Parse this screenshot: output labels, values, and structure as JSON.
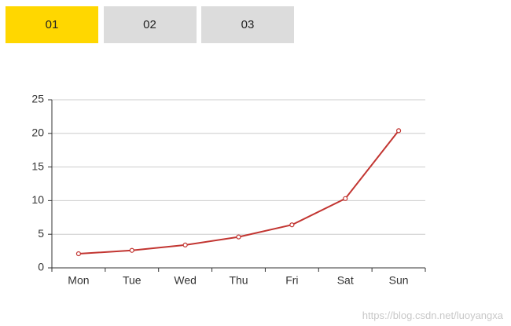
{
  "tabs": {
    "items": [
      "01",
      "02",
      "03"
    ],
    "active": 0,
    "active_color": "#ffd700",
    "color": "#dcdcdc"
  },
  "chart_data": {
    "type": "line",
    "categories": [
      "Mon",
      "Tue",
      "Wed",
      "Thu",
      "Fri",
      "Sat",
      "Sun"
    ],
    "values": [
      2.1,
      2.6,
      3.4,
      4.6,
      6.4,
      10.3,
      20.4
    ],
    "color": "#c23531",
    "ylim": [
      0,
      25
    ],
    "yticks": [
      0,
      5,
      10,
      15,
      20,
      25
    ],
    "grid": true
  },
  "watermark": "https://blog.csdn.net/luoyangxa"
}
